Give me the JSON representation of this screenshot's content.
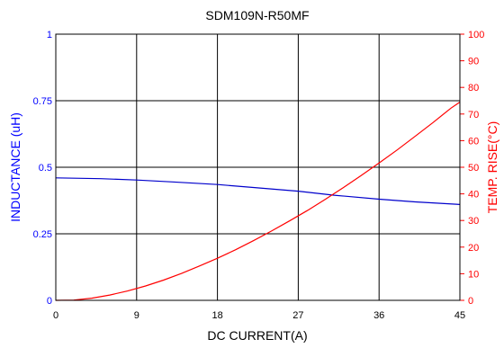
{
  "chart_data": {
    "type": "line",
    "title": "SDM109N-R50MF",
    "xlabel": "DC CURRENT(A)",
    "ylabel_left": "INDUCTANCE (uH)",
    "ylabel_right": "TEMP. RISE(°C)",
    "xlim": [
      0,
      45
    ],
    "ylim_left": [
      0,
      1
    ],
    "ylim_right": [
      0,
      100
    ],
    "grid": true,
    "x_ticks": [
      "0",
      "9",
      "18",
      "27",
      "36",
      "45"
    ],
    "y_left_ticks": [
      "0",
      "0.25",
      "0.5",
      "0.75",
      "1"
    ],
    "y_right_ticks": [
      "0",
      "10",
      "20",
      "30",
      "40",
      "50",
      "60",
      "70",
      "80",
      "90",
      "100"
    ],
    "colors": {
      "left_axis": "#0000ff",
      "right_axis": "#ff0000",
      "grid": "#000000"
    },
    "series": [
      {
        "axis": "left",
        "color": "#0000cc",
        "x": [
          0,
          5,
          9,
          13,
          18,
          22,
          27,
          31,
          36,
          40,
          45
        ],
        "y": [
          0.46,
          0.457,
          0.452,
          0.445,
          0.435,
          0.424,
          0.41,
          0.395,
          0.38,
          0.37,
          0.36
        ]
      },
      {
        "axis": "right",
        "color": "#ff0000",
        "x": [
          0,
          2,
          4,
          6,
          8,
          10,
          12,
          14,
          16,
          18,
          20,
          22,
          24,
          26,
          28,
          30,
          32,
          34,
          36,
          38,
          40,
          42,
          44,
          45
        ],
        "y": [
          0,
          0.1,
          0.8,
          2,
          3.5,
          5.4,
          7.6,
          10.1,
          12.9,
          15.8,
          19,
          22.4,
          26,
          29.8,
          33.7,
          37.9,
          42.3,
          46.9,
          51.6,
          56.5,
          61.6,
          66.8,
          72.2,
          74.5
        ]
      }
    ]
  }
}
